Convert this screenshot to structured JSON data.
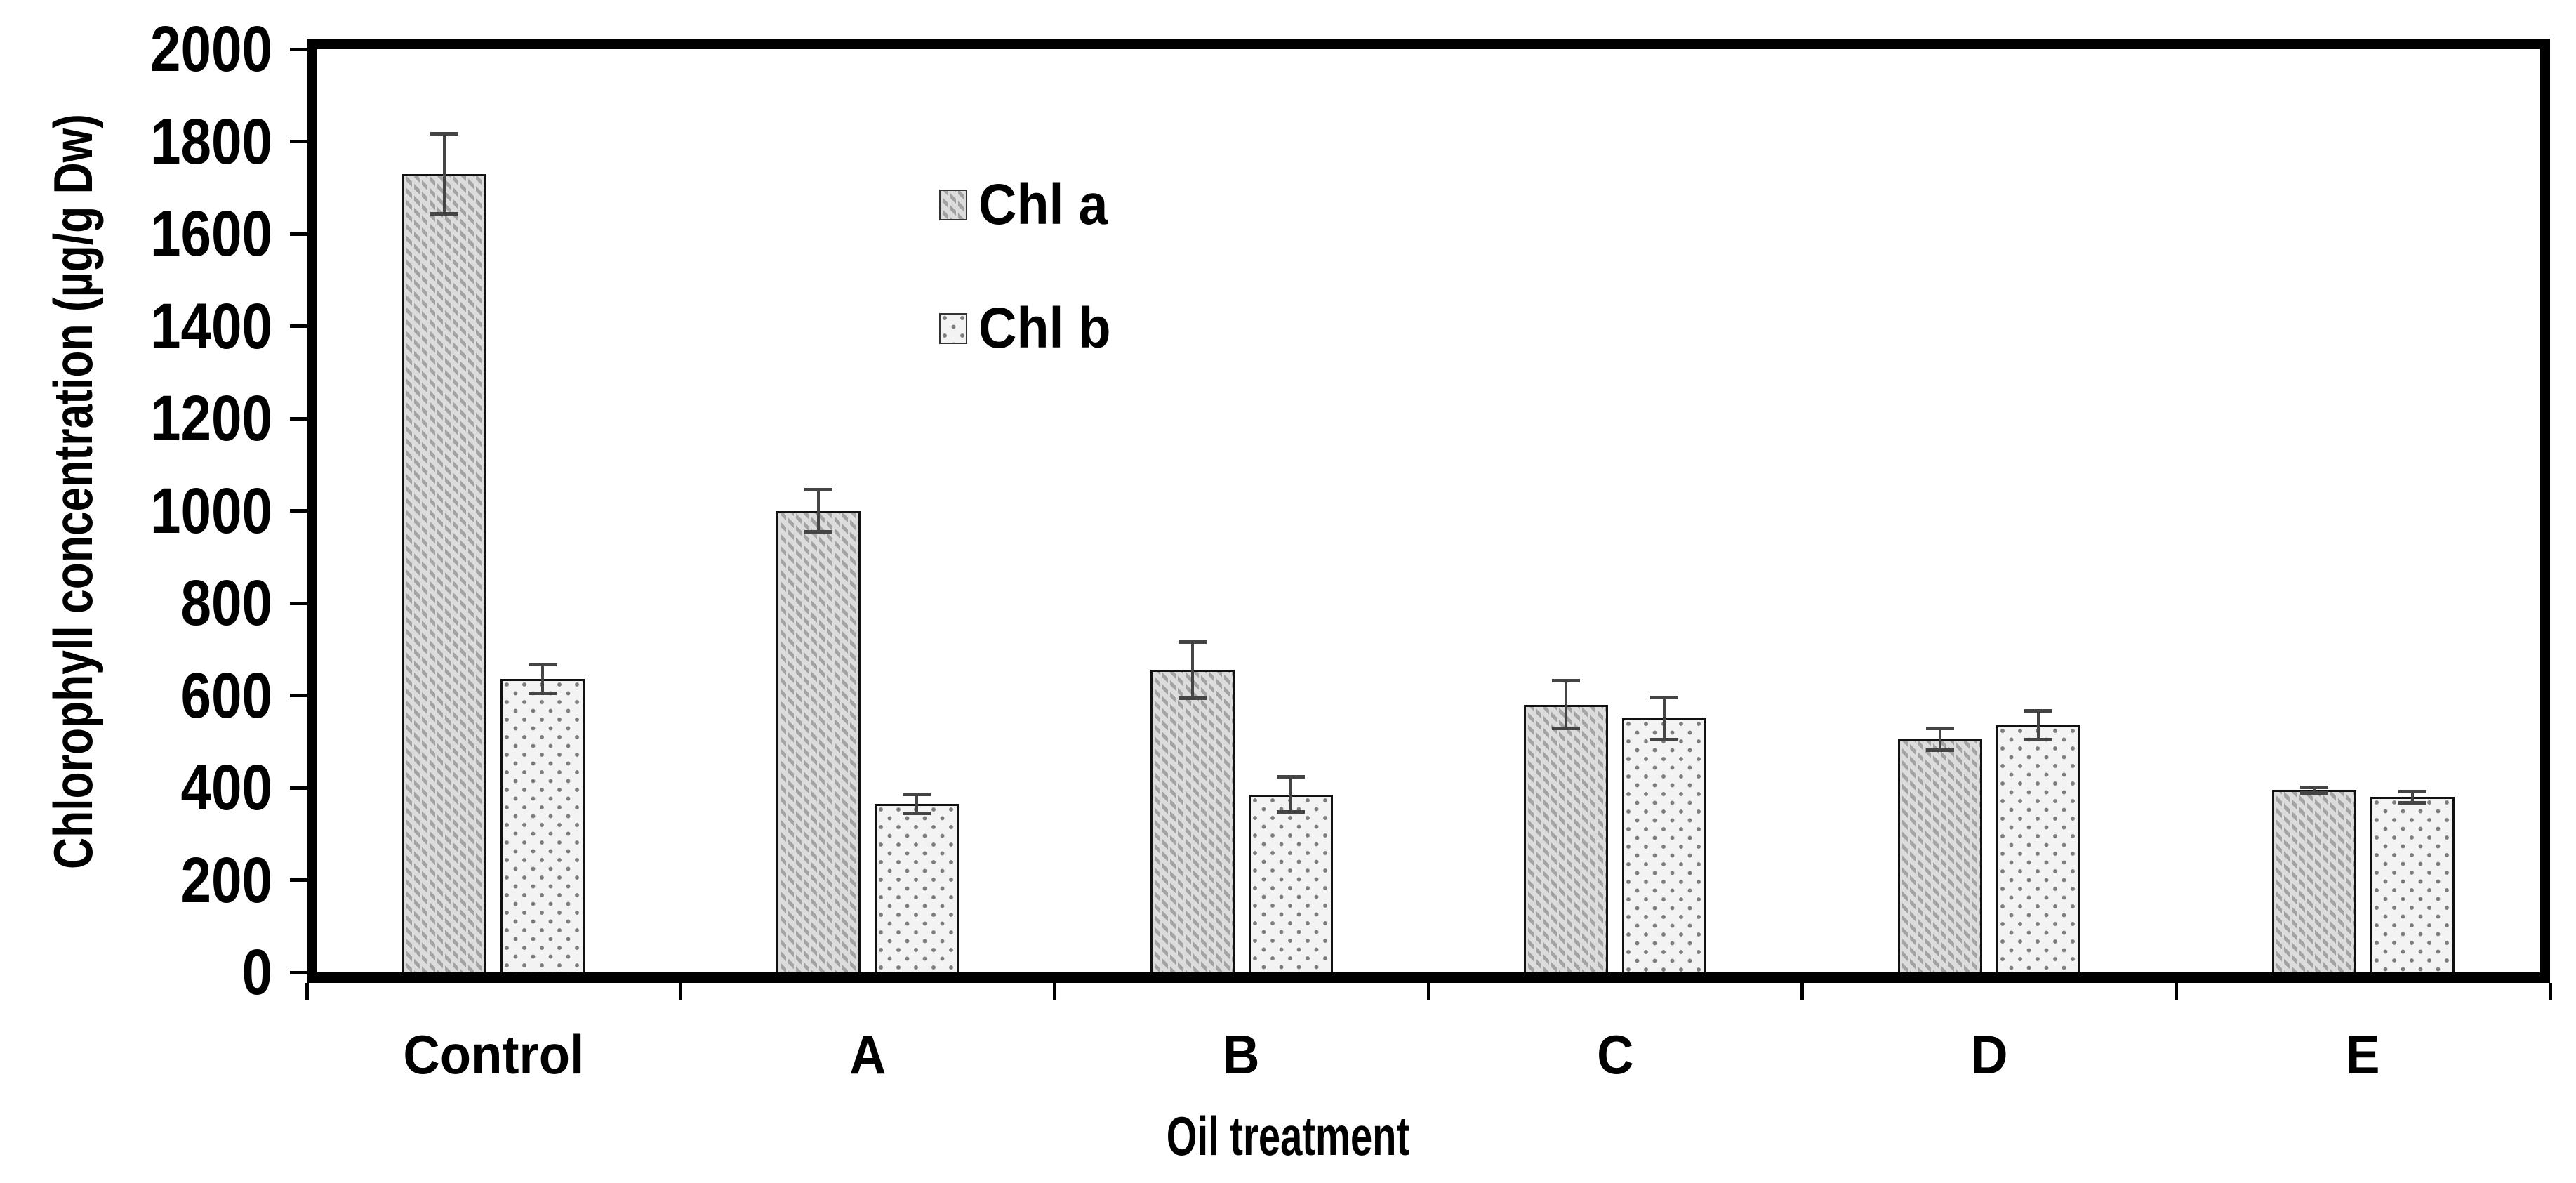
{
  "figure": {
    "background": "#ffffff"
  },
  "y_axis": {
    "title": "Chlorophyll concentration (µg/g Dw)",
    "ticks": [
      0,
      200,
      400,
      600,
      800,
      1000,
      1200,
      1400,
      1600,
      1800,
      2000
    ],
    "min": 0,
    "max": 2000
  },
  "x_axis": {
    "title": "Oil treatment",
    "categories": [
      "Control",
      "A",
      "B",
      "C",
      "D",
      "E"
    ]
  },
  "legend": {
    "position": "inside-top-left-of-plot",
    "entries": [
      {
        "label": "Chl a",
        "pattern": "diagonal-hatch"
      },
      {
        "label": "Chl b",
        "pattern": "dots"
      }
    ]
  },
  "chart_data": {
    "type": "bar",
    "title": "",
    "xlabel": "Oil treatment",
    "ylabel": "Chlorophyll concentration (µg/g Dw)",
    "ylim": [
      0,
      2000
    ],
    "grid": false,
    "error_bars": true,
    "categories": [
      "Control",
      "A",
      "B",
      "C",
      "D",
      "E"
    ],
    "series": [
      {
        "name": "Chl a",
        "pattern": "diagonal-hatch",
        "values": [
          1730,
          1000,
          655,
          580,
          505,
          395
        ],
        "errors": [
          90,
          50,
          65,
          55,
          27,
          10
        ]
      },
      {
        "name": "Chl b",
        "pattern": "dots",
        "values": [
          635,
          365,
          385,
          550,
          535,
          380
        ],
        "errors": [
          35,
          25,
          42,
          50,
          35,
          16
        ]
      }
    ]
  },
  "colors": {
    "frame": "#000000",
    "bar_outline": "#111111",
    "hatch_fill": "#dcdcdc",
    "hatch_stroke": "#a3a3a3",
    "dot_fill": "#f3f3f3",
    "dot_stroke": "#7d7d7d",
    "error_bar": "#444444",
    "text": "#000000"
  }
}
